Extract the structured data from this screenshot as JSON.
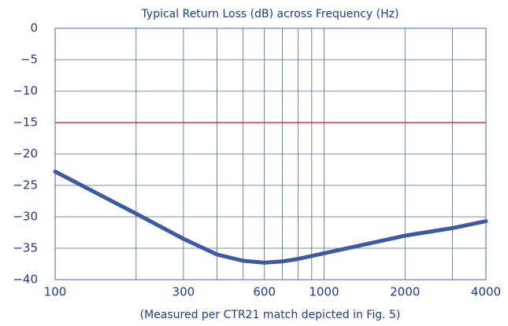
{
  "chart_data": {
    "type": "line",
    "title": "Typical Return Loss (dB) across Frequency (Hz)",
    "caption": "(Measured per CTR21 match depicted in Fig. 5)",
    "xscale": "log",
    "xlim": [
      100,
      4000
    ],
    "xticks": [
      100,
      300,
      600,
      1000,
      2000,
      4000
    ],
    "xgrid": [
      100,
      200,
      300,
      400,
      500,
      600,
      700,
      800,
      900,
      1000,
      2000,
      3000,
      4000
    ],
    "ylim": [
      -40,
      0
    ],
    "yticks": [
      0,
      {
        "value": -5,
        "label": "−5"
      },
      {
        "value": -10,
        "label": "−10"
      },
      {
        "value": -15,
        "label": "−15"
      },
      {
        "value": -20,
        "label": "−20"
      },
      {
        "value": -25,
        "label": "−25"
      },
      {
        "value": -30,
        "label": "−30"
      },
      {
        "value": -35,
        "label": "−35"
      },
      {
        "value": -40,
        "label": "−40"
      }
    ],
    "grid": true,
    "grid_color": "#4a64a8",
    "reference_line": {
      "value": -15,
      "color": "#c8103c"
    },
    "series": [
      {
        "color": "#3d5a9e",
        "x": [
          100,
          200,
          300,
          400,
          500,
          600,
          700,
          800,
          1000,
          2000,
          3000,
          4000
        ],
        "values": [
          -22.8,
          -29.5,
          -33.5,
          -36,
          -37,
          -37.3,
          -37.1,
          -36.7,
          -35.8,
          -33,
          -31.8,
          -30.7
        ]
      }
    ]
  }
}
